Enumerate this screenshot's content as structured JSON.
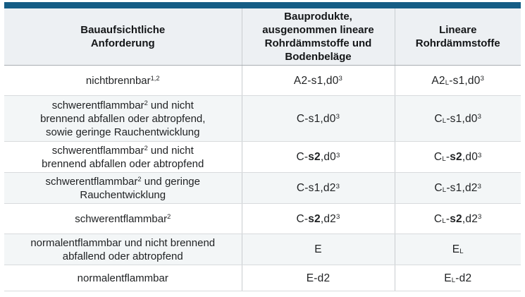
{
  "colors": {
    "accent_bar": "#155d85",
    "header_bg": "#edf0f3",
    "stripe_bg": "#f3f6f7",
    "grid_line": "#c9cdd0"
  },
  "table": {
    "columns": [
      {
        "id": "requirement",
        "label": "Bauaufsichtliche\nAnforderung"
      },
      {
        "id": "products",
        "label": "Bauprodukte,\nausgenommen lineare\nRohrdämmstoffe und\nBodenbeläge"
      },
      {
        "id": "linear",
        "label": "Lineare\nRohrdämmstoffe"
      }
    ],
    "rows": [
      {
        "requirement": "nichtbrennbar^{1,2}",
        "products": "A2-s1,d0^{3}",
        "linear": "A2_{L}-s1,d0^{3}"
      },
      {
        "requirement": "schwerentflammbar^{2} und nicht\nbrennend abfallen oder abtropfend,\nsowie geringe Rauchentwicklung",
        "products": "C-s1,d0^{3}",
        "linear": "C_{L}-s1,d0^{3}"
      },
      {
        "requirement": "schwerentflammbar^{2} und nicht\nbrennend abfallen oder abtropfend",
        "products": "C-*s2*,d0^{3}",
        "linear": "C_{L}-*s2*,d0^{3}"
      },
      {
        "requirement": "schwerentflammbar^{2} und geringe\nRauchentwicklung",
        "products": "C-s1,d2^{3}",
        "linear": "C_{L}-s1,d2^{3}"
      },
      {
        "requirement": "schwerentflammbar^{2}",
        "products": "C-*s2*,d2^{3}",
        "linear": "C_{L}-*s2*,d2^{3}"
      },
      {
        "requirement": "normalentflammbar und nicht brennend\nabfallend oder abtropfend",
        "products": "E",
        "linear": "E_{L}"
      },
      {
        "requirement": "normalentflammbar",
        "products": "E-d2",
        "linear": "E_{L}-d2"
      }
    ]
  }
}
